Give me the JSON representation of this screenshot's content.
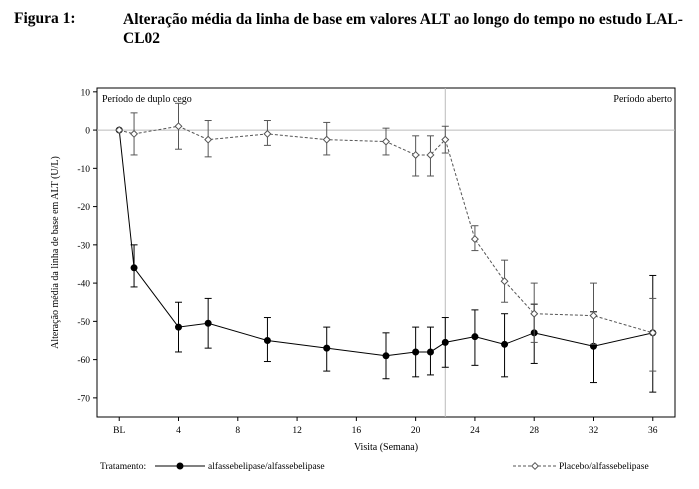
{
  "figure": {
    "label": "Figura 1:",
    "title": "Alteração média da linha de base em valores ALT ao longo do tempo no estudo LAL-CL02"
  },
  "chart_data": {
    "type": "line",
    "xlabel": "Visita (Semana)",
    "ylabel": "Alteração média da linha de base em ALT (U/L)",
    "xlim": [
      -1.5,
      37.5
    ],
    "ylim": [
      -75,
      11
    ],
    "x_ticks": [
      {
        "value": 0,
        "label": "BL"
      },
      {
        "value": 4,
        "label": "4"
      },
      {
        "value": 8,
        "label": "8"
      },
      {
        "value": 12,
        "label": "12"
      },
      {
        "value": 16,
        "label": "16"
      },
      {
        "value": 20,
        "label": "20"
      },
      {
        "value": 24,
        "label": "24"
      },
      {
        "value": 28,
        "label": "28"
      },
      {
        "value": 32,
        "label": "32"
      },
      {
        "value": 36,
        "label": "36"
      }
    ],
    "y_ticks": [
      10,
      0,
      -10,
      -20,
      -30,
      -40,
      -50,
      -60,
      -70
    ],
    "reference_line_y": 0,
    "period_divider_x": 22,
    "periods": {
      "left": "Período de duplo cego",
      "right": "Período aberto"
    },
    "legend_title": "Tratamento:",
    "series": [
      {
        "name": "alfassebelipase/alfassebelipase",
        "marker": "filled-circle",
        "line": "solid",
        "color": "#000000",
        "points": [
          {
            "x": 0,
            "y": 0,
            "lo": 0,
            "hi": 0
          },
          {
            "x": 1,
            "y": -36,
            "lo": -41,
            "hi": -30
          },
          {
            "x": 4,
            "y": -51.5,
            "lo": -58,
            "hi": -45
          },
          {
            "x": 6,
            "y": -50.5,
            "lo": -57,
            "hi": -44
          },
          {
            "x": 10,
            "y": -55,
            "lo": -60.5,
            "hi": -49
          },
          {
            "x": 14,
            "y": -57,
            "lo": -63,
            "hi": -51.5
          },
          {
            "x": 18,
            "y": -59,
            "lo": -65,
            "hi": -53
          },
          {
            "x": 20,
            "y": -58,
            "lo": -64.5,
            "hi": -51.5
          },
          {
            "x": 21,
            "y": -58,
            "lo": -64,
            "hi": -51.5
          },
          {
            "x": 22,
            "y": -55.5,
            "lo": -62,
            "hi": -49
          },
          {
            "x": 24,
            "y": -54,
            "lo": -61.5,
            "hi": -47
          },
          {
            "x": 26,
            "y": -56,
            "lo": -64.5,
            "hi": -48
          },
          {
            "x": 28,
            "y": -53,
            "lo": -61,
            "hi": -45.5
          },
          {
            "x": 32,
            "y": -56.5,
            "lo": -66,
            "hi": -47.5
          },
          {
            "x": 36,
            "y": -53,
            "lo": -68.5,
            "hi": -38
          }
        ]
      },
      {
        "name": "Placebo/alfassebelipase",
        "marker": "open-diamond",
        "line": "dashed",
        "color": "#000000",
        "points": [
          {
            "x": 0,
            "y": 0,
            "lo": 0,
            "hi": 0
          },
          {
            "x": 1,
            "y": -1,
            "lo": -6.5,
            "hi": 4.5
          },
          {
            "x": 4,
            "y": 1,
            "lo": -5,
            "hi": 7
          },
          {
            "x": 6,
            "y": -2.5,
            "lo": -7,
            "hi": 2.5
          },
          {
            "x": 10,
            "y": -1,
            "lo": -4,
            "hi": 2.5
          },
          {
            "x": 14,
            "y": -2.5,
            "lo": -6.5,
            "hi": 2
          },
          {
            "x": 18,
            "y": -3,
            "lo": -6.5,
            "hi": 0.5
          },
          {
            "x": 20,
            "y": -6.5,
            "lo": -12,
            "hi": -1.5
          },
          {
            "x": 21,
            "y": -6.5,
            "lo": -12,
            "hi": -1.5
          },
          {
            "x": 22,
            "y": -2.5,
            "lo": -6,
            "hi": 1
          },
          {
            "x": 24,
            "y": -28.5,
            "lo": -31.5,
            "hi": -25
          },
          {
            "x": 26,
            "y": -39.5,
            "lo": -45,
            "hi": -34
          },
          {
            "x": 28,
            "y": -48,
            "lo": -55.5,
            "hi": -40
          },
          {
            "x": 32,
            "y": -48.5,
            "lo": -56,
            "hi": -40
          },
          {
            "x": 36,
            "y": -53,
            "lo": -63,
            "hi": -44
          }
        ]
      }
    ]
  }
}
